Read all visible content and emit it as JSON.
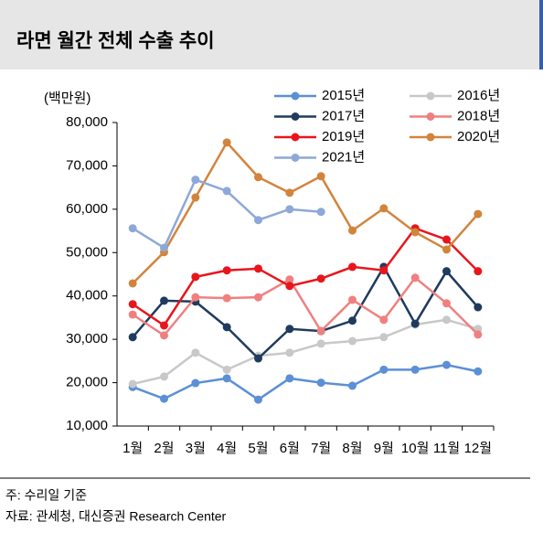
{
  "chart_data": {
    "type": "line",
    "title": "라면 월간 전체 수출 추이",
    "ylabel": "(백만원)",
    "categories": [
      "1월",
      "2월",
      "3월",
      "4월",
      "5월",
      "6월",
      "7월",
      "8월",
      "9월",
      "10월",
      "11월",
      "12월"
    ],
    "series": [
      {
        "name": "2015년",
        "color": "#5b8fd6",
        "values": [
          19000,
          16300,
          19900,
          21000,
          16100,
          21000,
          20000,
          19300,
          23000,
          23000,
          24100,
          22600
        ]
      },
      {
        "name": "2016년",
        "color": "#c8c8c8",
        "values": [
          19700,
          21400,
          26900,
          23000,
          26200,
          26900,
          29000,
          29600,
          30500,
          33400,
          34500,
          32400
        ]
      },
      {
        "name": "2017년",
        "color": "#1f3b5e",
        "values": [
          30500,
          38900,
          38700,
          32800,
          25600,
          32400,
          31900,
          34300,
          46700,
          33600,
          45700,
          37400
        ]
      },
      {
        "name": "2018년",
        "color": "#f08080",
        "values": [
          35700,
          30900,
          39700,
          39500,
          39700,
          43800,
          31900,
          39100,
          34500,
          44200,
          38300,
          31100
        ]
      },
      {
        "name": "2019년",
        "color": "#e8161c",
        "values": [
          38100,
          33200,
          44400,
          45900,
          46300,
          42300,
          44000,
          46700,
          45900,
          55600,
          53000,
          45700
        ]
      },
      {
        "name": "2020년",
        "color": "#d2843c",
        "values": [
          42900,
          50100,
          62700,
          75400,
          67400,
          63800,
          67600,
          55100,
          60200,
          54700,
          50700,
          58900
        ]
      },
      {
        "name": "2021년",
        "color": "#8ea8d8",
        "values": [
          55600,
          51100,
          66800,
          64200,
          57500,
          60000,
          59400,
          null,
          null,
          null,
          null,
          null
        ]
      }
    ],
    "ylim": [
      10000,
      80000
    ],
    "yticks": [
      {
        "value": 10000,
        "label": "10,000"
      },
      {
        "value": 20000,
        "label": "20,000"
      },
      {
        "value": 30000,
        "label": "30,000"
      },
      {
        "value": 40000,
        "label": "40,000"
      },
      {
        "value": 50000,
        "label": "50,000"
      },
      {
        "value": 60000,
        "label": "60,000"
      },
      {
        "value": 70000,
        "label": "70,000"
      },
      {
        "value": 80000,
        "label": "80,000"
      }
    ],
    "grid": false
  },
  "notes": [
    "주: 수리일 기준",
    "자료: 관세청, 대신증권 Research Center"
  ]
}
